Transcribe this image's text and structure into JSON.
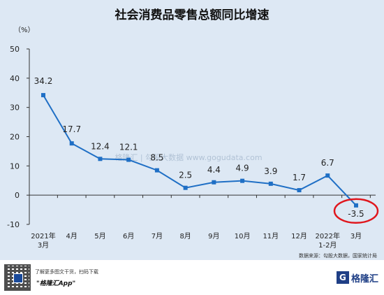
{
  "chart_data": {
    "type": "line",
    "title": "社会消费品零售总额同比增速",
    "unit_label": "（%）",
    "categories": [
      "2021年\n3月",
      "4月",
      "5月",
      "6月",
      "7月",
      "8月",
      "9月",
      "10月",
      "11月",
      "12月",
      "2022年\n1-2月",
      "3月"
    ],
    "series": [
      {
        "values": [
          34.2,
          17.7,
          12.4,
          12.1,
          8.5,
          2.5,
          4.4,
          4.9,
          3.9,
          1.7,
          6.7,
          -3.5
        ]
      }
    ],
    "data_labels": [
      "34.2",
      "17.7",
      "12.4",
      "12.1",
      "8.5",
      "2.5",
      "4.4",
      "4.9",
      "3.9",
      "1.7",
      "6.7",
      "-3.5"
    ],
    "ylim": [
      -10,
      50
    ],
    "yticks": [
      -10,
      0,
      10,
      20,
      30,
      40,
      50
    ],
    "grid": false,
    "highlight_last_point": true,
    "colors": {
      "line": "#1f6fc5",
      "highlight": "#e0161d"
    },
    "source": "数据来源：勾股大数据，国家统计局",
    "watermark": "格隆汇 | 勾股大数据 www.gogudata.com"
  },
  "footer": {
    "promo_line": "了解更多图文干货，扫码下载",
    "app_name": "\"格隆汇App\"",
    "brand_mark": "G",
    "brand_name": "格隆汇"
  }
}
